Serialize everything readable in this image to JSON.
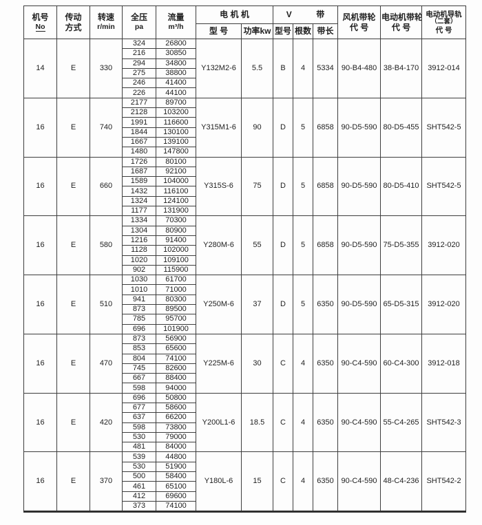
{
  "header": {
    "col_machine": {
      "line1": "机号",
      "line2": "No"
    },
    "col_drive": {
      "line1": "传动",
      "line2": "方式"
    },
    "col_speed": {
      "line1": "转速",
      "line2": "r/min"
    },
    "col_pressure": {
      "line1": "全压",
      "line2": "pa"
    },
    "col_flow": {
      "line1": "流量",
      "line2": "m³/h"
    },
    "group_motor": "电 机 机",
    "motor_model": "型 号",
    "motor_power": "功率kw",
    "vbelt_left": "V",
    "vbelt_right": "带",
    "belt_model": "型号",
    "belt_count": "根数",
    "belt_length": "带长",
    "col_fan_pulley": {
      "line1": "风机带轮",
      "line2": "代 号"
    },
    "col_motor_pulley": {
      "line1": "电动机带轮",
      "line2": "代 号"
    },
    "col_rail": {
      "line1": "电动机导轨",
      "line2": "（二套）",
      "line3": "代 号"
    }
  },
  "groups": [
    {
      "machine_no": "14",
      "drive": "E",
      "speed": "330",
      "rows": [
        {
          "pressure": "324",
          "flow": "26800"
        },
        {
          "pressure": "216",
          "flow": "30850"
        },
        {
          "pressure": "294",
          "flow": "34800"
        },
        {
          "pressure": "275",
          "flow": "38800"
        },
        {
          "pressure": "246",
          "flow": "41400"
        },
        {
          "pressure": "226",
          "flow": "44100"
        }
      ],
      "motor_model": "Y132M2-6",
      "power": "5.5",
      "belt_type": "B",
      "belt_count": "4",
      "belt_length": "5334",
      "fan_pulley": "90-B4-480",
      "motor_pulley": "38-B4-170",
      "rail": "3912-014"
    },
    {
      "machine_no": "16",
      "drive": "E",
      "speed": "740",
      "rows": [
        {
          "pressure": "2177",
          "flow": "89700"
        },
        {
          "pressure": "2128",
          "flow": "103200"
        },
        {
          "pressure": "1991",
          "flow": "116600"
        },
        {
          "pressure": "1844",
          "flow": "130100"
        },
        {
          "pressure": "1667",
          "flow": "139100"
        },
        {
          "pressure": "1480",
          "flow": "147800"
        }
      ],
      "motor_model": "Y315M1-6",
      "power": "90",
      "belt_type": "D",
      "belt_count": "5",
      "belt_length": "6858",
      "fan_pulley": "90-D5-590",
      "motor_pulley": "80-D5-455",
      "rail": "SHT542-5"
    },
    {
      "machine_no": "16",
      "drive": "E",
      "speed": "660",
      "rows": [
        {
          "pressure": "1726",
          "flow": "80100"
        },
        {
          "pressure": "1687",
          "flow": "92100"
        },
        {
          "pressure": "1589",
          "flow": "104000"
        },
        {
          "pressure": "1432",
          "flow": "116100"
        },
        {
          "pressure": "1324",
          "flow": "124100"
        },
        {
          "pressure": "1177",
          "flow": "131900"
        }
      ],
      "motor_model": "Y315S-6",
      "power": "75",
      "belt_type": "D",
      "belt_count": "5",
      "belt_length": "6858",
      "fan_pulley": "90-D5-590",
      "motor_pulley": "80-D5-410",
      "rail": "SHT542-5"
    },
    {
      "machine_no": "16",
      "drive": "E",
      "speed": "580",
      "rows": [
        {
          "pressure": "1334",
          "flow": "70300"
        },
        {
          "pressure": "1304",
          "flow": "80900"
        },
        {
          "pressure": "1216",
          "flow": "91400"
        },
        {
          "pressure": "1128",
          "flow": "102000"
        },
        {
          "pressure": "1020",
          "flow": "109100"
        },
        {
          "pressure": "902",
          "flow": "115900"
        }
      ],
      "motor_model": "Y280M-6",
      "power": "55",
      "belt_type": "D",
      "belt_count": "5",
      "belt_length": "6858",
      "fan_pulley": "90-D5-590",
      "motor_pulley": "75-D5-355",
      "rail": "3912-020"
    },
    {
      "machine_no": "16",
      "drive": "E",
      "speed": "510",
      "rows": [
        {
          "pressure": "1030",
          "flow": "61700"
        },
        {
          "pressure": "1010",
          "flow": "71000"
        },
        {
          "pressure": "941",
          "flow": "80300"
        },
        {
          "pressure": "873",
          "flow": "89500"
        },
        {
          "pressure": "785",
          "flow": "95700"
        },
        {
          "pressure": "696",
          "flow": "101900"
        }
      ],
      "motor_model": "Y250M-6",
      "power": "37",
      "belt_type": "D",
      "belt_count": "5",
      "belt_length": "6350",
      "fan_pulley": "90-D5-590",
      "motor_pulley": "65-D5-315",
      "rail": "3912-020"
    },
    {
      "machine_no": "16",
      "drive": "E",
      "speed": "470",
      "rows": [
        {
          "pressure": "873",
          "flow": "56900"
        },
        {
          "pressure": "853",
          "flow": "65600"
        },
        {
          "pressure": "804",
          "flow": "74100"
        },
        {
          "pressure": "745",
          "flow": "82600"
        },
        {
          "pressure": "667",
          "flow": "88400"
        },
        {
          "pressure": "598",
          "flow": "94000"
        }
      ],
      "motor_model": "Y225M-6",
      "power": "30",
      "belt_type": "C",
      "belt_count": "4",
      "belt_length": "6350",
      "fan_pulley": "90-C4-590",
      "motor_pulley": "60-C4-300",
      "rail": "3912-018"
    },
    {
      "machine_no": "16",
      "drive": "E",
      "speed": "420",
      "rows": [
        {
          "pressure": "696",
          "flow": "50800"
        },
        {
          "pressure": "677",
          "flow": "58600"
        },
        {
          "pressure": "637",
          "flow": "66200"
        },
        {
          "pressure": "598",
          "flow": "73800"
        },
        {
          "pressure": "530",
          "flow": "79000"
        },
        {
          "pressure": "481",
          "flow": "84000"
        }
      ],
      "motor_model": "Y200L1-6",
      "power": "18.5",
      "belt_type": "C",
      "belt_count": "4",
      "belt_length": "6350",
      "fan_pulley": "90-C4-590",
      "motor_pulley": "55-C4-265",
      "rail": "SHT542-3"
    },
    {
      "machine_no": "16",
      "drive": "E",
      "speed": "370",
      "rows": [
        {
          "pressure": "539",
          "flow": "44800"
        },
        {
          "pressure": "530",
          "flow": "51900"
        },
        {
          "pressure": "500",
          "flow": "58400"
        },
        {
          "pressure": "461",
          "flow": "65100"
        },
        {
          "pressure": "412",
          "flow": "69600"
        },
        {
          "pressure": "373",
          "flow": "74100"
        }
      ],
      "motor_model": "Y180L-6",
      "power": "15",
      "belt_type": "C",
      "belt_count": "4",
      "belt_length": "6350",
      "fan_pulley": "90-C4-590",
      "motor_pulley": "48-C4-236",
      "rail": "SHT542-2"
    }
  ]
}
